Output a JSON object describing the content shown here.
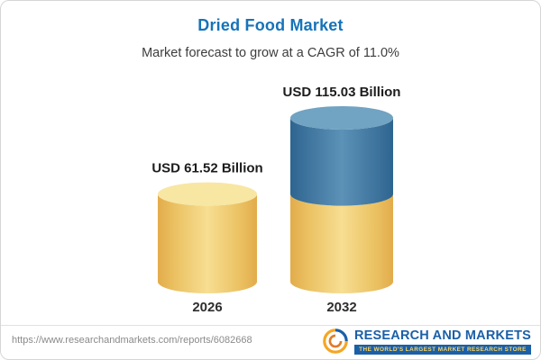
{
  "header": {
    "title": "Dried Food Market",
    "subtitle": "Market forecast to grow at a CAGR of 11.0%"
  },
  "chart_data": {
    "type": "bar",
    "subtype": "3d-cylinder",
    "categories": [
      "2026",
      "2032"
    ],
    "values": [
      61.52,
      115.03
    ],
    "value_labels": [
      "USD 61.52 Billion",
      "USD 115.03 Billion"
    ],
    "unit": "USD Billion",
    "cagr_pct": 11.0,
    "title": "Dried Food Market",
    "subtitle": "Market forecast to grow at a CAGR of 11.0%",
    "colors": {
      "base_segment": "#F2CE68",
      "growth_segment": "#3E7CA6"
    },
    "baseline_aligned": true,
    "legend": "none",
    "grid": false
  },
  "footer": {
    "url": "https://www.researchandmarkets.com/reports/6082668",
    "brand": "RESEARCH AND MARKETS",
    "tagline": "THE WORLD'S LARGEST MARKET RESEARCH STORE"
  }
}
